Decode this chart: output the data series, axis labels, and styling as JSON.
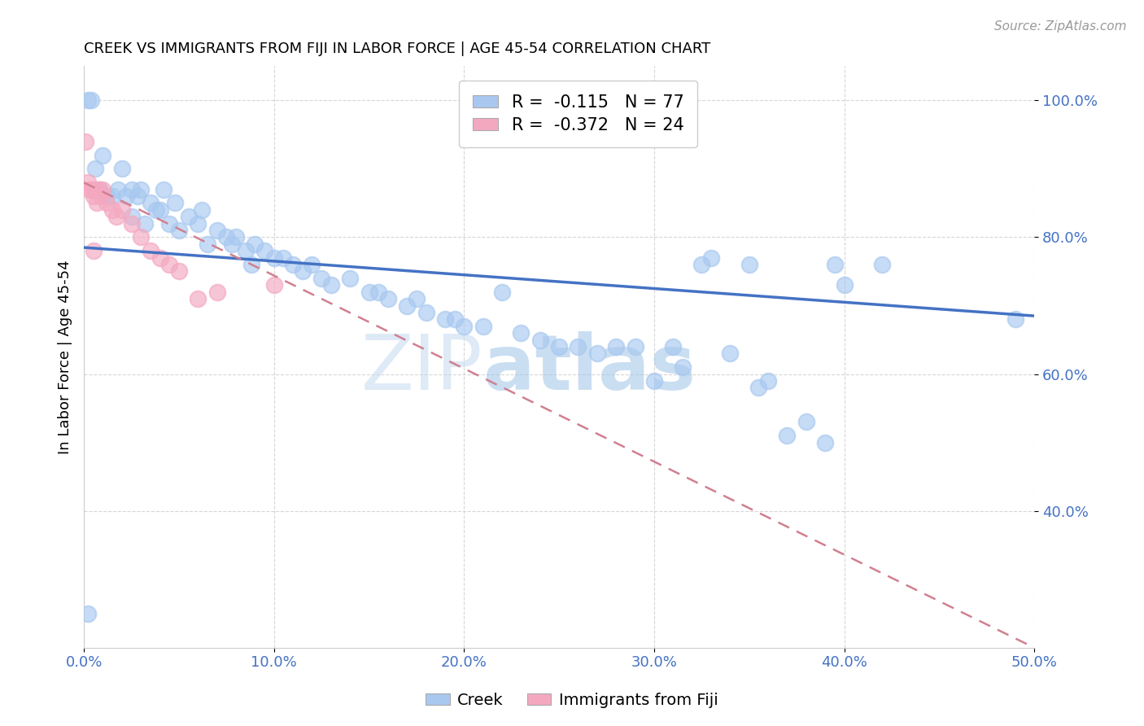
{
  "title": "CREEK VS IMMIGRANTS FROM FIJI IN LABOR FORCE | AGE 45-54 CORRELATION CHART",
  "source": "Source: ZipAtlas.com",
  "ylabel": "In Labor Force | Age 45-54",
  "xlim": [
    0.0,
    0.5
  ],
  "ylim": [
    0.2,
    1.05
  ],
  "xticks": [
    0.0,
    0.1,
    0.2,
    0.3,
    0.4,
    0.5
  ],
  "yticks": [
    0.4,
    0.6,
    0.8,
    1.0
  ],
  "ytick_labels": [
    "40.0%",
    "60.0%",
    "80.0%",
    "100.0%"
  ],
  "xtick_labels": [
    "0.0%",
    "10.0%",
    "20.0%",
    "30.0%",
    "40.0%",
    "50.0%"
  ],
  "creek_color": "#a8c8f0",
  "fiji_color": "#f4a8c0",
  "trendline_creek_color": "#4472c4",
  "trendline_fiji_color": "#d08090",
  "watermark_zip": "ZIP",
  "watermark_atlas": "atlas",
  "legend_text1": "R =  -0.115   N = 77",
  "legend_text2": "R =  -0.372   N = 24",
  "creek_x": [
    0.002,
    0.004,
    0.006,
    0.008,
    0.01,
    0.012,
    0.015,
    0.018,
    0.02,
    0.022,
    0.025,
    0.025,
    0.028,
    0.03,
    0.032,
    0.035,
    0.038,
    0.04,
    0.042,
    0.045,
    0.048,
    0.05,
    0.055,
    0.06,
    0.062,
    0.065,
    0.07,
    0.075,
    0.078,
    0.08,
    0.085,
    0.088,
    0.09,
    0.095,
    0.1,
    0.105,
    0.11,
    0.115,
    0.12,
    0.125,
    0.13,
    0.14,
    0.15,
    0.155,
    0.16,
    0.17,
    0.175,
    0.18,
    0.19,
    0.195,
    0.2,
    0.21,
    0.22,
    0.23,
    0.24,
    0.25,
    0.26,
    0.27,
    0.28,
    0.29,
    0.3,
    0.31,
    0.315,
    0.325,
    0.33,
    0.34,
    0.35,
    0.355,
    0.36,
    0.37,
    0.38,
    0.39,
    0.395,
    0.4,
    0.42,
    0.49,
    0.002
  ],
  "creek_y": [
    1.0,
    1.0,
    0.9,
    0.87,
    0.92,
    0.86,
    0.86,
    0.87,
    0.9,
    0.86,
    0.87,
    0.83,
    0.86,
    0.87,
    0.82,
    0.85,
    0.84,
    0.84,
    0.87,
    0.82,
    0.85,
    0.81,
    0.83,
    0.82,
    0.84,
    0.79,
    0.81,
    0.8,
    0.79,
    0.8,
    0.78,
    0.76,
    0.79,
    0.78,
    0.77,
    0.77,
    0.76,
    0.75,
    0.76,
    0.74,
    0.73,
    0.74,
    0.72,
    0.72,
    0.71,
    0.7,
    0.71,
    0.69,
    0.68,
    0.68,
    0.67,
    0.67,
    0.72,
    0.66,
    0.65,
    0.64,
    0.64,
    0.63,
    0.64,
    0.64,
    0.59,
    0.64,
    0.61,
    0.76,
    0.77,
    0.63,
    0.76,
    0.58,
    0.59,
    0.51,
    0.53,
    0.5,
    0.76,
    0.73,
    0.76,
    0.68,
    0.25
  ],
  "fiji_x": [
    0.001,
    0.002,
    0.003,
    0.004,
    0.005,
    0.006,
    0.007,
    0.008,
    0.009,
    0.01,
    0.012,
    0.015,
    0.017,
    0.02,
    0.025,
    0.03,
    0.035,
    0.04,
    0.045,
    0.05,
    0.06,
    0.07,
    0.1,
    0.005
  ],
  "fiji_y": [
    0.94,
    0.88,
    0.87,
    0.87,
    0.86,
    0.87,
    0.85,
    0.87,
    0.86,
    0.87,
    0.85,
    0.84,
    0.83,
    0.84,
    0.82,
    0.8,
    0.78,
    0.77,
    0.76,
    0.75,
    0.71,
    0.72,
    0.73,
    0.78
  ],
  "trend_creek_x0": 0.0,
  "trend_creek_y0": 0.785,
  "trend_creek_x1": 0.5,
  "trend_creek_y1": 0.685,
  "trend_fiji_x0": 0.0,
  "trend_fiji_y0": 0.88,
  "trend_fiji_x1": 0.5,
  "trend_fiji_y1": 0.2
}
